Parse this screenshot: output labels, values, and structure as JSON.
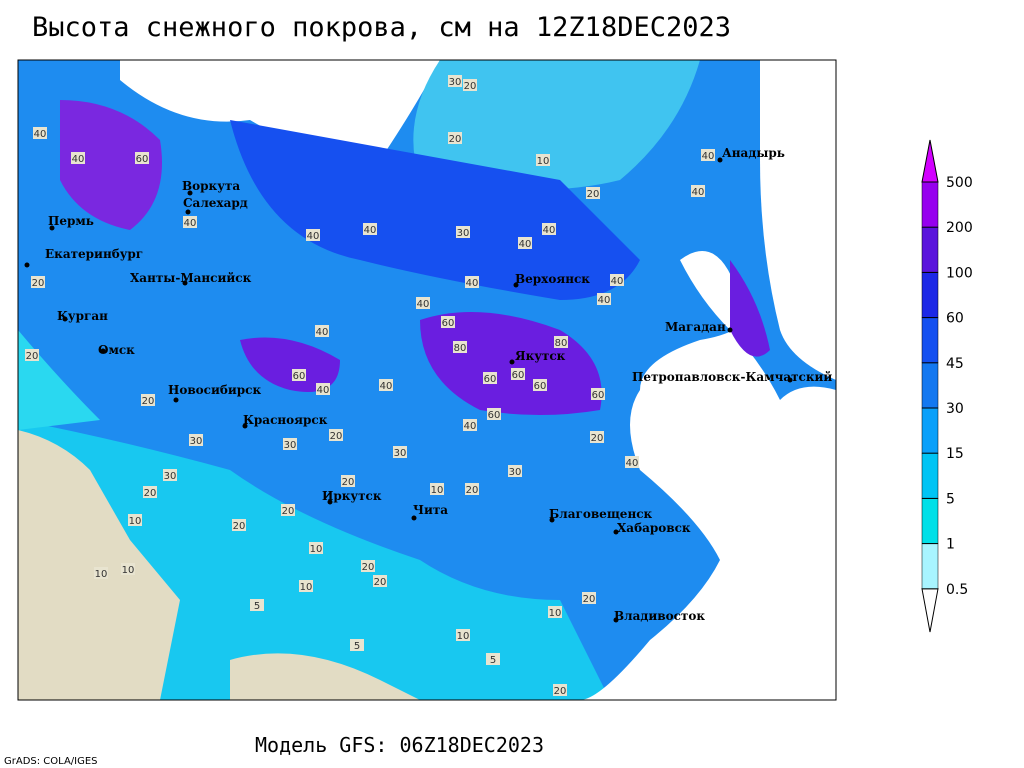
{
  "header": {
    "title": "Высота снежного покрова, см на 12Z18DEC2023"
  },
  "map": {
    "cities": [
      "Анадырь",
      "Воркута",
      "Салехард",
      "Пермь",
      "Екатеринбург",
      "Ханты-Мансийск",
      "Верхоянск",
      "Курган",
      "Магадан",
      "Омск",
      "Якутск",
      "Петропавловск-Камчатский",
      "Новосибирск",
      "Красноярск",
      "Иркутск",
      "Чита",
      "Благовещенск",
      "Хабаровск",
      "Владивосток"
    ],
    "contour_labels": [
      40,
      60,
      40,
      30,
      20,
      20,
      10,
      20,
      40,
      40,
      40,
      40,
      40,
      30,
      40,
      40,
      40,
      40,
      40,
      40,
      40,
      60,
      80,
      60,
      60,
      60,
      80,
      60,
      60,
      40,
      40,
      60,
      40,
      20,
      30,
      30,
      20,
      30,
      30,
      20,
      10,
      20,
      20,
      20,
      20,
      10,
      20,
      20,
      10,
      10,
      10,
      10,
      5,
      5,
      10,
      5,
      10,
      20,
      20,
      20,
      20,
      40,
      20,
      30
    ]
  },
  "legend": {
    "levels": [
      0.5,
      1,
      5,
      15,
      30,
      45,
      60,
      100,
      200,
      500
    ],
    "band_colors": [
      "#ffffff",
      "#a8f4ff",
      "#00e0e8",
      "#00c4f4",
      "#0aa0fa",
      "#1478f0",
      "#1450f0",
      "#1c28e6",
      "#5a14dc",
      "#9600ee",
      "#d200ff"
    ]
  },
  "footer": {
    "model": "Модель GFS: 06Z18DEC2023",
    "credit": "GrADS: COLA/IGES"
  }
}
